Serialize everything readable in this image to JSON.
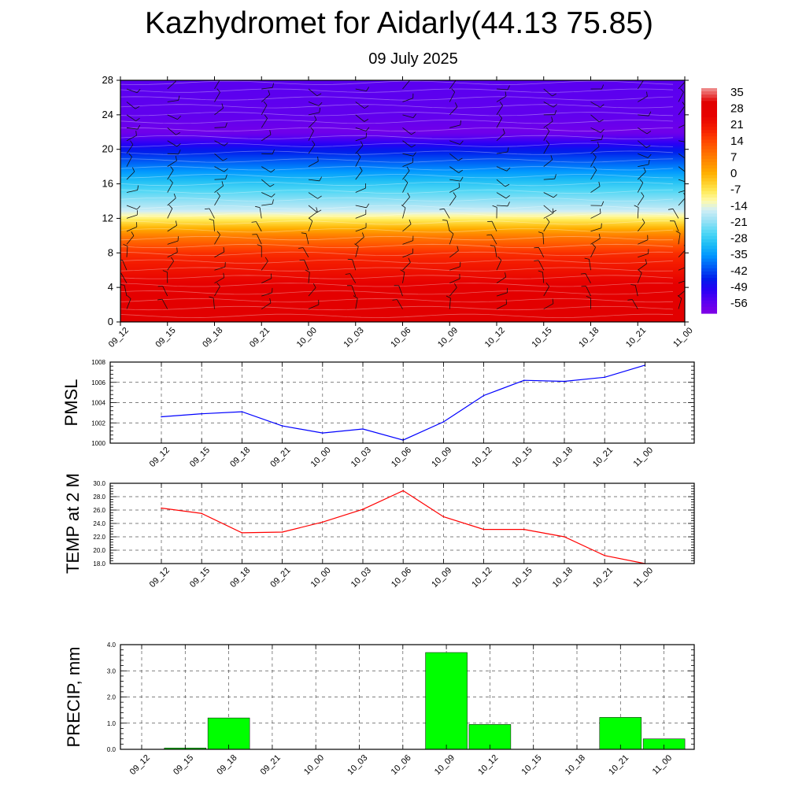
{
  "title": "Kazhydromet for Aidarly(44.13 75.85)",
  "subtitle": "09 July 2025",
  "chart_data": [
    {
      "type": "heatmap",
      "name": "vertical-cross-section",
      "x_ticks": [
        "09_12",
        "09_15",
        "09_18",
        "09_21",
        "10_00",
        "10_03",
        "10_06",
        "10_09",
        "10_12",
        "10_15",
        "10_18",
        "10_21",
        "11_00"
      ],
      "y_ticks": [
        0,
        4,
        8,
        12,
        16,
        20,
        24,
        28
      ],
      "ylim": [
        0,
        28
      ],
      "colorbar": {
        "labels": [
          "35",
          "28",
          "21",
          "14",
          "7",
          "0",
          "-7",
          "-14",
          "-21",
          "-28",
          "-35",
          "-42",
          "-49",
          "-56"
        ],
        "range": [
          -60,
          38
        ]
      },
      "temperature_profile": [
        {
          "level": 0,
          "value": 32
        },
        {
          "level": 4,
          "value": 27
        },
        {
          "level": 8,
          "value": 18
        },
        {
          "level": 10,
          "value": 8
        },
        {
          "level": 12,
          "value": -8
        },
        {
          "level": 13,
          "value": -16
        },
        {
          "level": 16,
          "value": -28
        },
        {
          "level": 20,
          "value": -46
        },
        {
          "level": 22,
          "value": -58
        },
        {
          "level": 24,
          "value": -56
        },
        {
          "level": 28,
          "value": -55
        }
      ],
      "wind_barbs": true
    },
    {
      "type": "line",
      "ylabel": "PMSL",
      "categories": [
        "09_12",
        "09_15",
        "09_18",
        "09_21",
        "10_00",
        "10_03",
        "10_06",
        "10_09",
        "10_12",
        "10_15",
        "10_18",
        "10_21",
        "11_00"
      ],
      "series": [
        {
          "values": [
            1002.6,
            1002.9,
            1003.1,
            1001.7,
            1001.0,
            1001.4,
            1000.3,
            1002.1,
            1004.7,
            1006.2,
            1006.1,
            1006.5,
            1007.7
          ]
        }
      ],
      "ylim": [
        1000,
        1008
      ],
      "y_ticks": [
        "1000",
        "1002",
        "1004",
        "1006",
        "1008"
      ],
      "color": "#0000ff"
    },
    {
      "type": "line",
      "ylabel": "TEMP at 2 M",
      "categories": [
        "09_12",
        "09_15",
        "09_18",
        "09_21",
        "10_00",
        "10_03",
        "10_06",
        "10_09",
        "10_12",
        "10_15",
        "10_18",
        "10_21",
        "11_00"
      ],
      "series": [
        {
          "values": [
            26.3,
            25.5,
            22.6,
            22.7,
            24.2,
            26.1,
            28.9,
            25.0,
            23.1,
            23.1,
            22.0,
            19.2,
            18.0
          ]
        }
      ],
      "ylim": [
        18,
        30
      ],
      "y_ticks": [
        "18.0",
        "20.0",
        "22.0",
        "24.0",
        "26.0",
        "28.0",
        "30.0"
      ],
      "color": "#ff0000"
    },
    {
      "type": "bar",
      "ylabel": "PRECIP, mm",
      "categories": [
        "09_12",
        "09_15",
        "09_18",
        "09_21",
        "10_00",
        "10_03",
        "10_06",
        "10_09",
        "10_12",
        "10_15",
        "10_18",
        "10_21",
        "11_00"
      ],
      "values": [
        0,
        0.05,
        1.2,
        0,
        0,
        0,
        0,
        3.7,
        0.95,
        0,
        0,
        1.22,
        0.4
      ],
      "ylim": [
        0,
        4
      ],
      "y_ticks": [
        "0.0",
        "1.0",
        "2.0",
        "3.0",
        "4.0"
      ],
      "color": "#00ff00"
    }
  ]
}
